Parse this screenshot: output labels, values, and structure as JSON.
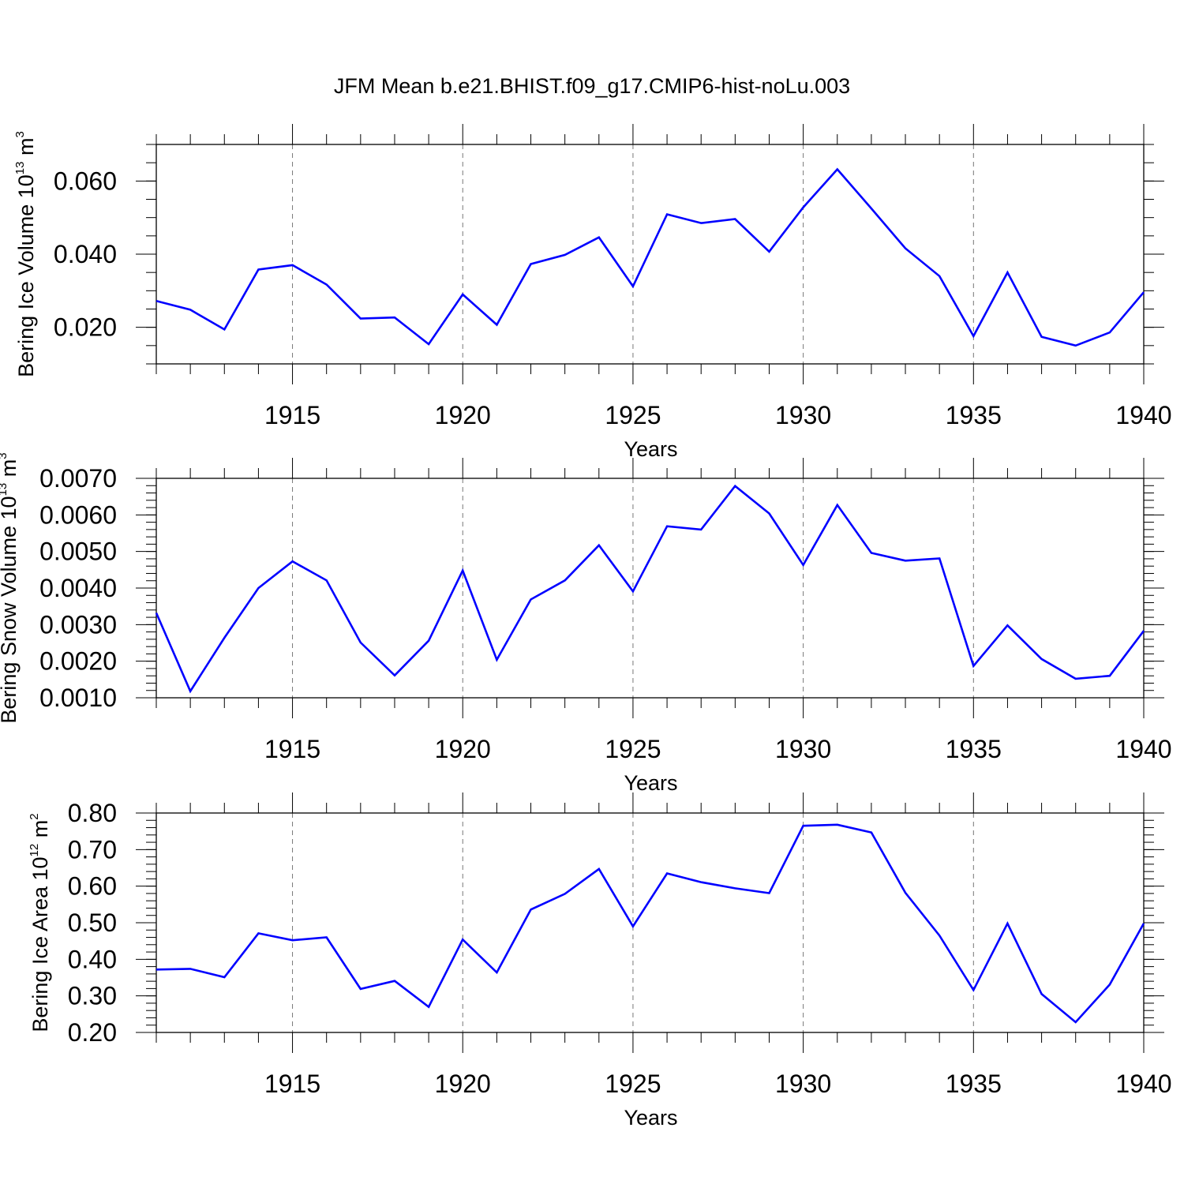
{
  "chart_data": {
    "type": "line",
    "title": "JFM Mean b.e21.BHIST.f09_g17.CMIP6-hist-noLu.003",
    "line_color": "#0000ff",
    "x": [
      1911,
      1912,
      1913,
      1914,
      1915,
      1916,
      1917,
      1918,
      1919,
      1920,
      1921,
      1922,
      1923,
      1924,
      1925,
      1926,
      1927,
      1928,
      1929,
      1930,
      1931,
      1932,
      1933,
      1934,
      1935,
      1936,
      1937,
      1938,
      1939,
      1940
    ],
    "xlim": [
      1911,
      1940
    ],
    "xticks": [
      1915,
      1920,
      1925,
      1930,
      1935,
      1940
    ],
    "xlabel": "Years",
    "panels": [
      {
        "name": "ice-volume",
        "ylabel_main": "Bering Ice Volume 10",
        "ylabel_exp": "13",
        "ylabel_unit": "m",
        "ylabel_unit_exp": "3",
        "ylim": [
          0.01,
          0.07
        ],
        "yticks": [
          "0.020",
          "0.040",
          "0.060"
        ],
        "ytick_values": [
          0.02,
          0.04,
          0.06
        ],
        "minor_step": 0.005,
        "values": [
          0.0272,
          0.0248,
          0.0194,
          0.0358,
          0.037,
          0.0317,
          0.0224,
          0.0227,
          0.0154,
          0.029,
          0.0207,
          0.0373,
          0.0398,
          0.0446,
          0.0312,
          0.0509,
          0.0485,
          0.0496,
          0.0407,
          0.0528,
          0.0632,
          0.0525,
          0.0416,
          0.034,
          0.0176,
          0.035,
          0.0174,
          0.015,
          0.0186,
          0.0296
        ]
      },
      {
        "name": "snow-volume",
        "ylabel_main": "Bering Snow Volume 10",
        "ylabel_exp": "13",
        "ylabel_unit": "m",
        "ylabel_unit_exp": "3",
        "ylim": [
          0.001,
          0.007
        ],
        "yticks": [
          "0.0010",
          "0.0020",
          "0.0030",
          "0.0040",
          "0.0050",
          "0.0060",
          "0.0070"
        ],
        "ytick_values": [
          0.001,
          0.002,
          0.003,
          0.004,
          0.005,
          0.006,
          0.007
        ],
        "minor_step": 0.0002,
        "values": [
          0.00332,
          0.00118,
          0.00264,
          0.004,
          0.00473,
          0.00421,
          0.00251,
          0.00161,
          0.00256,
          0.00448,
          0.00204,
          0.00369,
          0.00421,
          0.00517,
          0.00391,
          0.00569,
          0.0056,
          0.00679,
          0.00604,
          0.00463,
          0.00627,
          0.00496,
          0.00475,
          0.00481,
          0.00187,
          0.00298,
          0.00206,
          0.00152,
          0.0016,
          0.00283
        ]
      },
      {
        "name": "ice-area",
        "ylabel_main": "Bering Ice Area 10",
        "ylabel_exp": "12",
        "ylabel_unit": "m",
        "ylabel_unit_exp": "2",
        "ylim": [
          0.2,
          0.8
        ],
        "yticks": [
          "0.20",
          "0.30",
          "0.40",
          "0.50",
          "0.60",
          "0.70",
          "0.80"
        ],
        "ytick_values": [
          0.2,
          0.3,
          0.4,
          0.5,
          0.6,
          0.7,
          0.8
        ],
        "minor_step": 0.02,
        "values": [
          0.372,
          0.374,
          0.351,
          0.471,
          0.452,
          0.46,
          0.319,
          0.341,
          0.27,
          0.454,
          0.364,
          0.536,
          0.579,
          0.647,
          0.49,
          0.635,
          0.611,
          0.594,
          0.581,
          0.765,
          0.768,
          0.747,
          0.582,
          0.465,
          0.316,
          0.498,
          0.305,
          0.228,
          0.331,
          0.498
        ]
      }
    ]
  }
}
